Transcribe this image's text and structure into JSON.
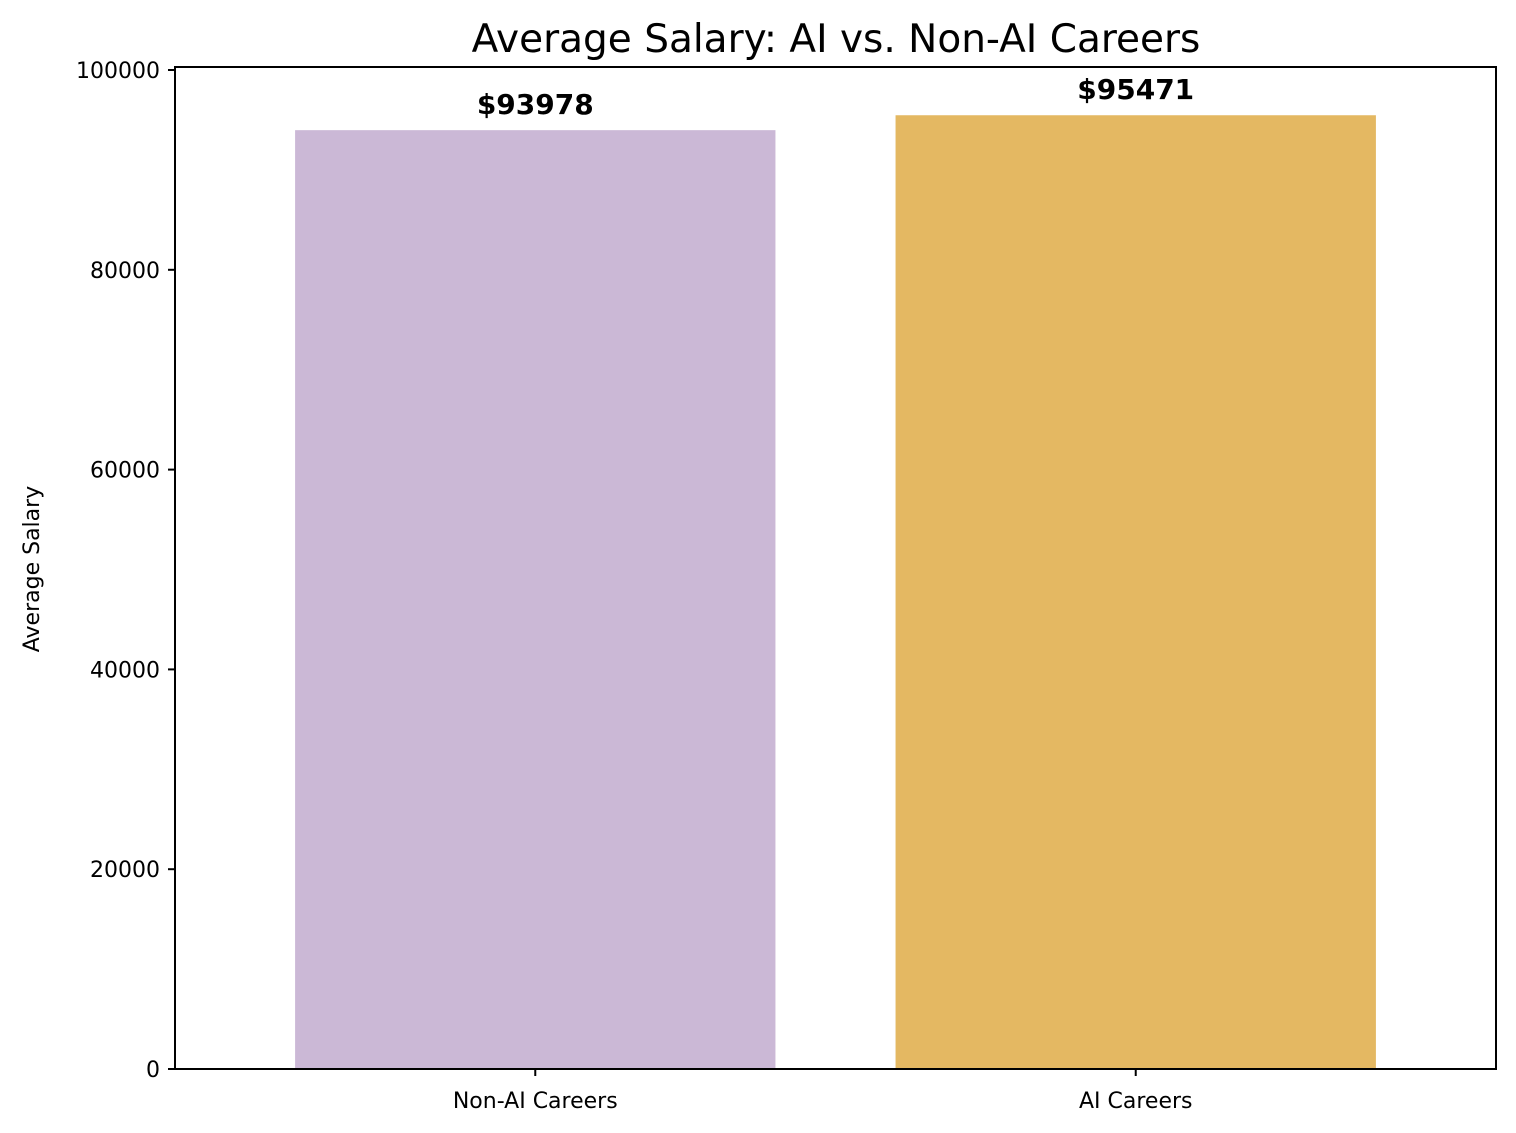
{
  "chart_data": {
    "type": "bar",
    "title": "Average Salary: AI vs. Non-AI Careers",
    "xlabel": "",
    "ylabel": "Average Salary",
    "categories": [
      "Non-AI Careers",
      "AI Careers"
    ],
    "values": [
      93978,
      95471
    ],
    "data_labels": [
      "$93978",
      "$95471"
    ],
    "colors": [
      "#cbb8d6",
      "#e4b862"
    ],
    "ylim": [
      0,
      100300
    ],
    "yticks": [
      0,
      20000,
      40000,
      60000,
      80000,
      100000
    ],
    "ytick_labels": [
      "0",
      "20000",
      "40000",
      "60000",
      "80000",
      "100000"
    ],
    "grid": false,
    "legend": "none"
  }
}
